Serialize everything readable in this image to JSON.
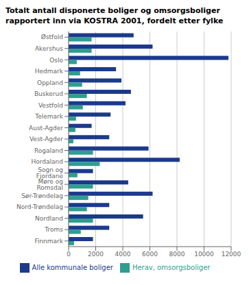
{
  "chart_data": {
    "type": "bar",
    "orientation": "horizontal",
    "title": "Totalt antall disponerte boliger og omsorgsboliger\nrapportert inn via KOSTRA 2001, fordelt etter fylke",
    "categories": [
      "Østfold",
      "Akershus",
      "Oslo",
      "Hedmark",
      "Oppland",
      "Buskerud",
      "Vestfold",
      "Telemark",
      "Aust-Agder",
      "Vest-Agder",
      "Rogaland",
      "Hordaland",
      "Sogn og Fjordane",
      "Møre og Romsdal",
      "Sør-Trøndelag",
      "Nord-Trøndelag",
      "Nordland",
      "Troms",
      "Finnmark"
    ],
    "series": [
      {
        "name": "Alle kommunale boliger",
        "color": "#1b3a8c",
        "values": [
          4800,
          6200,
          11800,
          3500,
          3900,
          4600,
          4200,
          3100,
          1700,
          3000,
          5900,
          8200,
          1800,
          4400,
          6200,
          3000,
          5500,
          3000,
          1800
        ]
      },
      {
        "name": "Herav, omsorgsboliger",
        "color": "#2e9e8f",
        "values": [
          1700,
          1700,
          600,
          850,
          1000,
          1350,
          1050,
          550,
          500,
          350,
          1800,
          2300,
          650,
          1800,
          1450,
          1350,
          1800,
          900,
          400
        ]
      }
    ],
    "xlim": [
      0,
      12000
    ],
    "xticks": [
      0,
      2000,
      4000,
      6000,
      8000,
      10000,
      12000
    ],
    "grid": true,
    "legend": "bottom"
  }
}
